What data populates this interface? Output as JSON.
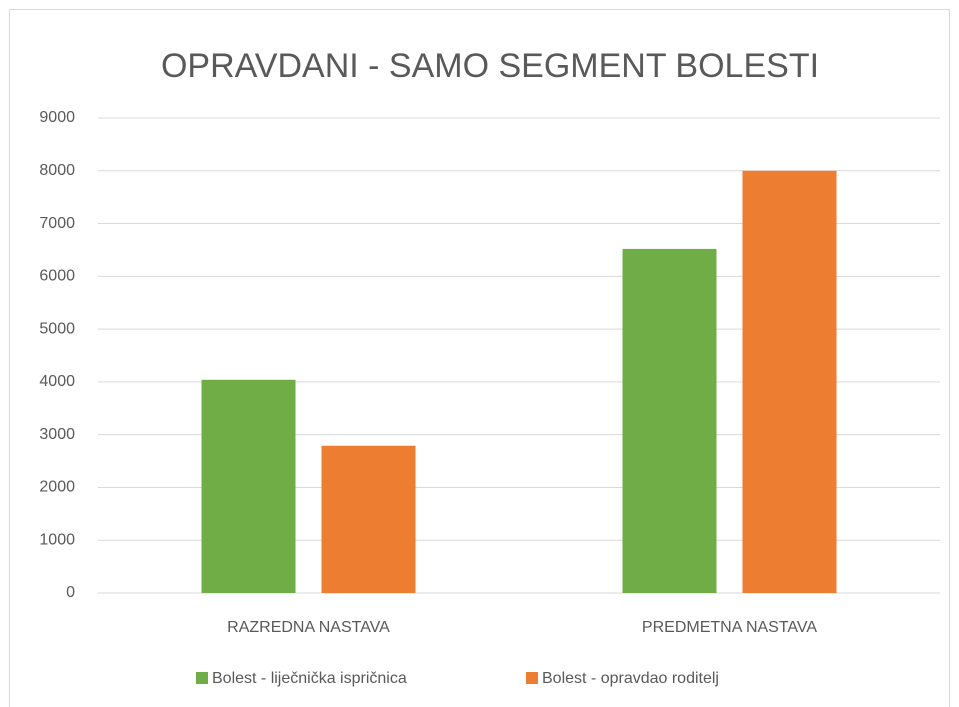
{
  "chart_data": {
    "type": "bar",
    "title": "OPRAVDANI - SAMO SEGMENT BOLESTI",
    "categories": [
      "RAZREDNA NASTAVA",
      "PREDMETNA NASTAVA"
    ],
    "series": [
      {
        "name": "Bolest - liječnička ispričnica",
        "color": "#70ad47",
        "values": [
          4040,
          6520
        ]
      },
      {
        "name": "Bolest - opravdao roditelj",
        "color": "#ed7d31",
        "values": [
          2790,
          8000
        ]
      }
    ],
    "ylim": [
      0,
      9000
    ],
    "yticks": [
      0,
      1000,
      2000,
      3000,
      4000,
      5000,
      6000,
      7000,
      8000,
      9000
    ],
    "grid": true,
    "legend": "bottom"
  }
}
